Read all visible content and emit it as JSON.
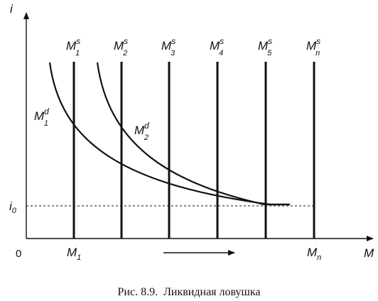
{
  "diagram": {
    "axes": {
      "y_label": "i",
      "x_label": "M",
      "origin_label": "0",
      "i0_base": "i",
      "i0_sub": "0"
    },
    "supply_lines": [
      {
        "base": "M",
        "sup": "s",
        "sub": "1"
      },
      {
        "base": "M",
        "sup": "s",
        "sub": "2"
      },
      {
        "base": "M",
        "sup": "s",
        "sub": "3"
      },
      {
        "base": "M",
        "sup": "s",
        "sub": "4"
      },
      {
        "base": "M",
        "sup": "s",
        "sub": "5"
      },
      {
        "base": "M",
        "sup": "s",
        "sub": "n"
      }
    ],
    "demand_curves": [
      {
        "base": "M",
        "sup": "d",
        "sub": "1"
      },
      {
        "base": "M",
        "sup": "d",
        "sub": "2"
      }
    ],
    "x_ticks": [
      {
        "base": "M",
        "sub": "1"
      },
      {
        "base": "M",
        "sub": "n"
      }
    ],
    "caption": "Рис. 8.9.  Ликвидная ловушка"
  }
}
